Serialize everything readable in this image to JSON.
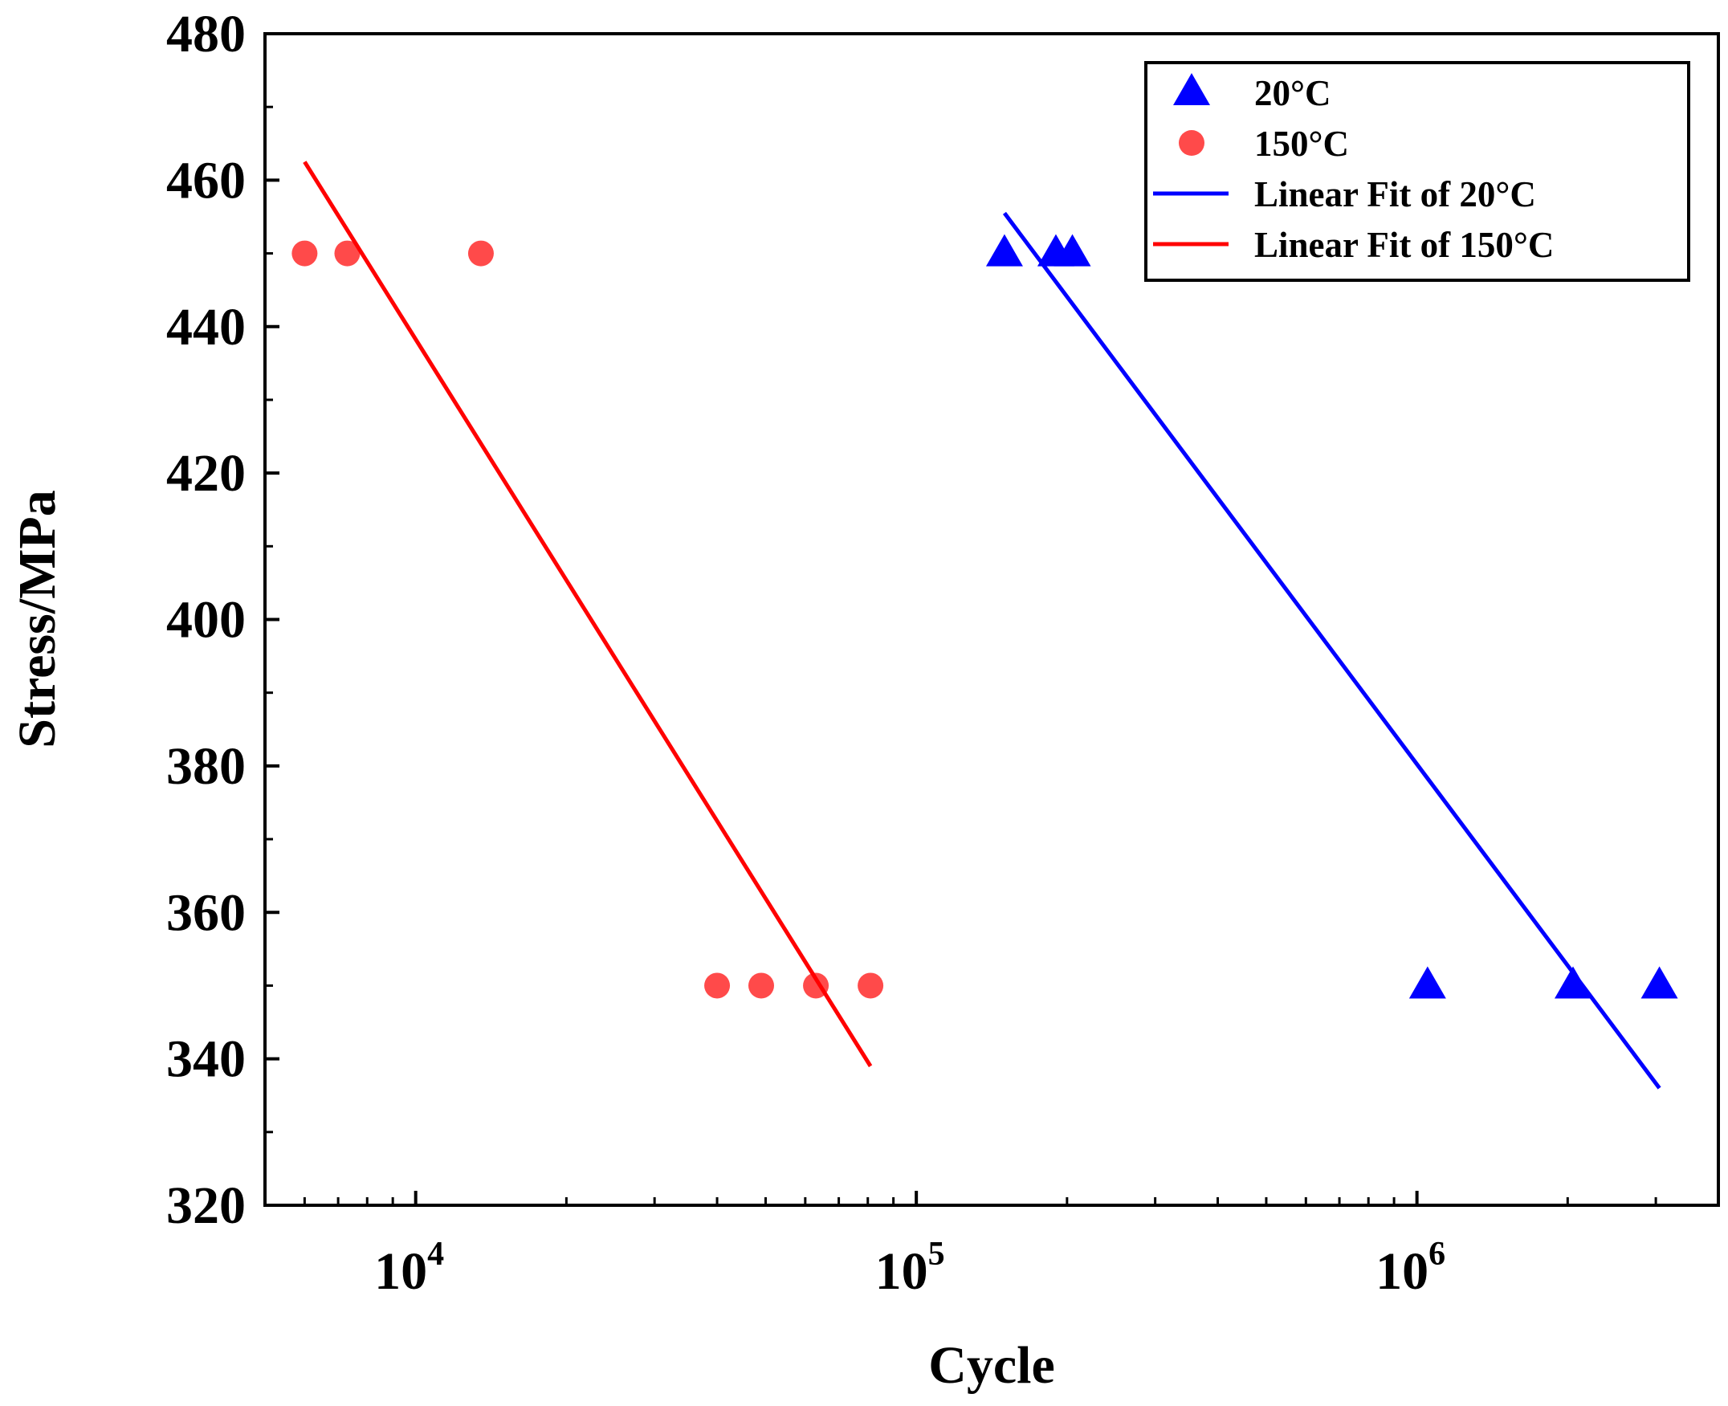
{
  "chart_data": {
    "type": "scatter",
    "title": "",
    "xlabel": "Cycle",
    "ylabel": "Stress/MPa",
    "xscale": "log",
    "xlim": [
      5000,
      4000000
    ],
    "ylim": [
      320,
      480
    ],
    "yticks": [
      320,
      340,
      360,
      380,
      400,
      420,
      440,
      460,
      480
    ],
    "yticks_minor_step": 10,
    "xticks": [
      {
        "value": 10000,
        "base": "10",
        "exp": "4"
      },
      {
        "value": 100000,
        "base": "10",
        "exp": "5"
      },
      {
        "value": 1000000,
        "base": "10",
        "exp": "6"
      }
    ],
    "legend_position": "top-right",
    "series": [
      {
        "name": "20°C",
        "kind": "scatter",
        "marker": "triangle",
        "color": "#0000ff",
        "points": [
          {
            "x": 150000,
            "y": 450
          },
          {
            "x": 190000,
            "y": 450
          },
          {
            "x": 205000,
            "y": 450
          },
          {
            "x": 1050000,
            "y": 350
          },
          {
            "x": 2050000,
            "y": 350
          },
          {
            "x": 3050000,
            "y": 350
          }
        ]
      },
      {
        "name": "150°C",
        "kind": "scatter",
        "marker": "circle",
        "color": "#ff4a4a",
        "points": [
          {
            "x": 6000,
            "y": 450
          },
          {
            "x": 7300,
            "y": 450
          },
          {
            "x": 13500,
            "y": 450
          },
          {
            "x": 40000,
            "y": 350
          },
          {
            "x": 49000,
            "y": 350
          },
          {
            "x": 63000,
            "y": 350
          },
          {
            "x": 81000,
            "y": 350
          }
        ]
      },
      {
        "name": "Linear Fit of 20°C",
        "kind": "line",
        "color": "#0000ff",
        "points": [
          {
            "x": 150000,
            "y": 455.5
          },
          {
            "x": 3050000,
            "y": 336
          }
        ]
      },
      {
        "name": "Linear Fit of 150°C",
        "kind": "line",
        "color": "#ff0000",
        "points": [
          {
            "x": 6000,
            "y": 462.5
          },
          {
            "x": 81000,
            "y": 339
          }
        ]
      }
    ]
  }
}
